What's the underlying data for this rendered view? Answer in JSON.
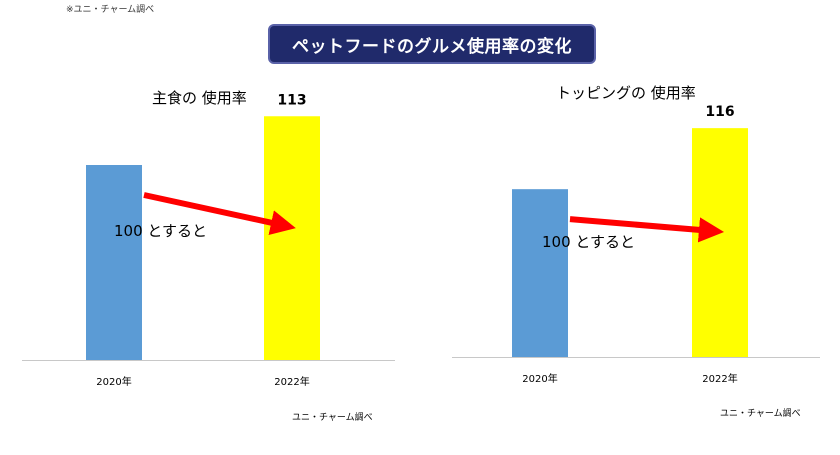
{
  "top_note": "※ユニ・チャーム調べ",
  "main_title": "ペットフードのグルメ使用率の変化",
  "colors": {
    "bar_2020": "#5b9bd5",
    "bar_2022": "#ffff00",
    "arrow": "#ff0000",
    "title_bg": "#202a6b",
    "baseline": "#c8c8c8"
  },
  "chart_data": [
    {
      "type": "bar",
      "title": "主食の 使用率",
      "categories": [
        "2020年",
        "2022年"
      ],
      "values": [
        100,
        113
      ],
      "value_label": "113",
      "annotation": "100 とすると",
      "ylim": [
        48,
        120
      ],
      "grid": false,
      "source": "ユニ・チャーム調べ"
    },
    {
      "type": "bar",
      "title": "トッピングの 使用率",
      "categories": [
        "2020年",
        "2022年"
      ],
      "values": [
        100,
        116
      ],
      "value_label": "116",
      "annotation": "100 とすると",
      "ylim": [
        56,
        126
      ],
      "grid": false,
      "source": "ユニ・チャーム調べ"
    }
  ]
}
